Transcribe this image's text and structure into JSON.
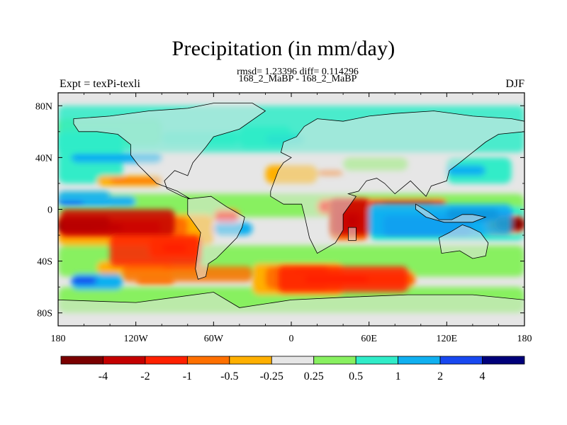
{
  "header": {
    "title": "Precipitation (in mm/day)",
    "stats": "rmsd= 1.23396 diff= 0.114296",
    "comparison": "168_2_MaBP - 168_2_MaBP",
    "experiment": "Expt = texPi-texli",
    "season": "DJF"
  },
  "chart_data": {
    "type": "heatmap",
    "title": "Precipitation (in mm/day)",
    "x_ticks": [
      "180",
      "120W",
      "60W",
      "0",
      "60E",
      "120E",
      "180"
    ],
    "y_ticks": [
      "80N",
      "40N",
      "0",
      "40S",
      "80S"
    ],
    "xlim": [
      -180,
      180
    ],
    "ylim": [
      -90,
      90
    ],
    "colorbar_labels": [
      "-4",
      "-2",
      "-1",
      "-0.5",
      "-0.25",
      "0.25",
      "0.5",
      "1",
      "2",
      "4"
    ],
    "colors": [
      "#7a0000",
      "#c40000",
      "#ff2000",
      "#ff7000",
      "#ffb000",
      "#e6e6e6",
      "#88f060",
      "#30ecc8",
      "#10b0f0",
      "#1848f0",
      "#00007a"
    ],
    "regions": [
      {
        "lon": [
          -180,
          -140
        ],
        "lat": [
          -16,
          -6
        ],
        "level": "-4"
      },
      {
        "lon": [
          180,
          158
        ],
        "lat": [
          -16,
          -6
        ],
        "level": "-4"
      },
      {
        "lon": [
          -178,
          -90
        ],
        "lat": [
          -20,
          0
        ],
        "level": "-2"
      },
      {
        "lon": [
          -140,
          -70
        ],
        "lat": [
          -44,
          -20
        ],
        "level": "-1"
      },
      {
        "lon": [
          -130,
          -30
        ],
        "lat": [
          -56,
          -44
        ],
        "level": "-0.5"
      },
      {
        "lon": [
          -10,
          90
        ],
        "lat": [
          -64,
          -44
        ],
        "level": "-1"
      },
      {
        "lon": [
          30,
          60
        ],
        "lat": [
          -20,
          8
        ],
        "level": "-2"
      },
      {
        "lon": [
          120,
          160
        ],
        "lat": [
          -8,
          0
        ],
        "level": "4"
      },
      {
        "lon": [
          60,
          170
        ],
        "lat": [
          -20,
          4
        ],
        "level": "1"
      },
      {
        "lon": [
          -180,
          -140
        ],
        "lat": [
          6,
          14
        ],
        "level": "1"
      },
      {
        "lon": [
          -180,
          180
        ],
        "lat": [
          44,
          80
        ],
        "level": "0.5"
      }
    ]
  }
}
